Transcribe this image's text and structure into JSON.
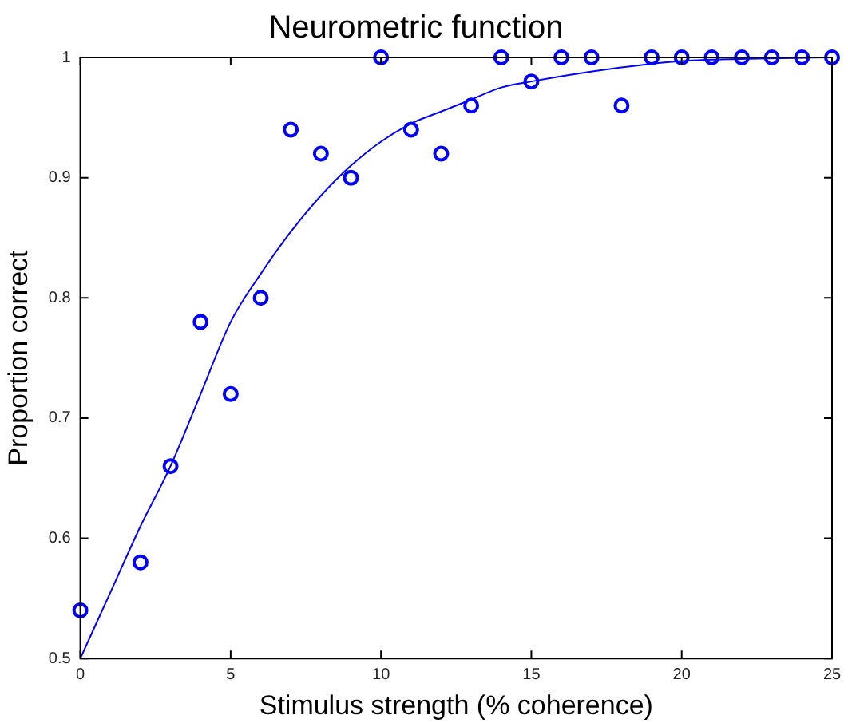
{
  "chart_data": {
    "type": "scatter",
    "title": "Neurometric function",
    "xlabel": "Stimulus strength (% coherence)",
    "ylabel": "Proportion correct",
    "xlim": [
      0,
      25
    ],
    "ylim": [
      0.5,
      1
    ],
    "xticks": [
      0,
      5,
      10,
      15,
      20,
      25
    ],
    "yticks": [
      0.5,
      0.6,
      0.7,
      0.8,
      0.9,
      1
    ],
    "grid": false,
    "legend": false,
    "series": [
      {
        "color": "#0000ff",
        "marker": "circle",
        "x": [
          0,
          2,
          3,
          4,
          5,
          6,
          7,
          8,
          9,
          10,
          11,
          12,
          13,
          14,
          15,
          16,
          17,
          18,
          19,
          20,
          21,
          22,
          23,
          24,
          25
        ],
        "values": [
          0.54,
          0.58,
          0.66,
          0.78,
          0.72,
          0.8,
          0.94,
          0.92,
          0.9,
          1,
          0.94,
          0.92,
          0.96,
          1,
          0.98,
          1,
          1,
          0.96,
          1,
          1,
          1,
          1,
          1,
          1,
          1
        ]
      },
      {
        "type": "line",
        "color": "#0000ff",
        "marker": "none",
        "line_style": "solid",
        "x": [
          0,
          1,
          2,
          3,
          4,
          5,
          6,
          7,
          8,
          9,
          10,
          11,
          12,
          13,
          14,
          15,
          17.5,
          20,
          22.5,
          25
        ],
        "values": [
          0.5,
          0.555,
          0.61,
          0.66,
          0.72,
          0.78,
          0.82,
          0.855,
          0.885,
          0.91,
          0.93,
          0.945,
          0.955,
          0.965,
          0.975,
          0.98,
          0.99,
          0.997,
          0.999,
          1
        ]
      }
    ]
  }
}
